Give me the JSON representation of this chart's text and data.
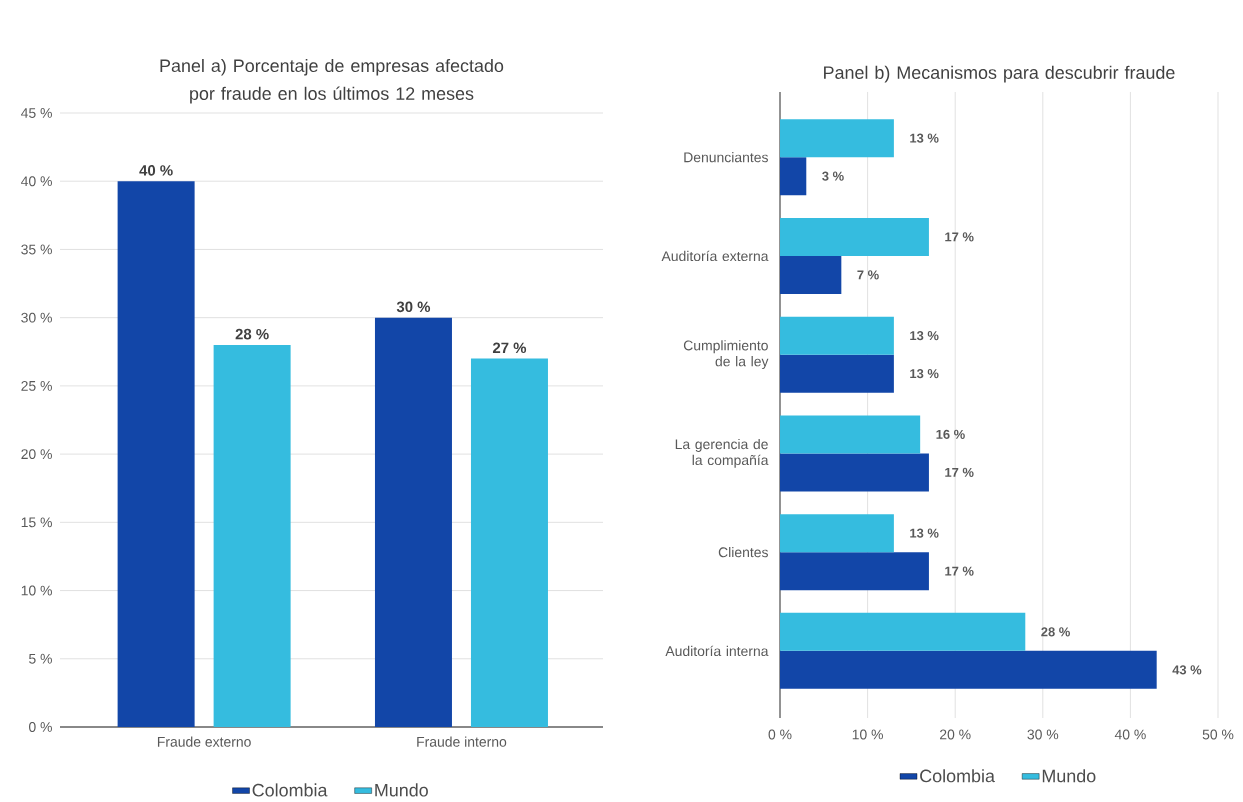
{
  "chart_data": [
    {
      "type": "bar",
      "title": "Panel a) Porcentaje de empresas afectado por fraude en los últimos 12 meses",
      "categories": [
        "Fraude externo",
        "Fraude interno"
      ],
      "series": [
        {
          "name": "Colombia",
          "color": "#1246a8",
          "values": [
            40,
            30
          ],
          "value_labels": [
            "40 %",
            "30 %"
          ]
        },
        {
          "name": "Mundo",
          "color": "#35bcdf",
          "values": [
            28,
            27
          ],
          "value_labels": [
            "28 %",
            "27 %"
          ]
        }
      ],
      "ylim": [
        0,
        45
      ],
      "yticks": [
        {
          "value": 0,
          "label": "0 %"
        },
        {
          "value": 5,
          "label": "5 %"
        },
        {
          "value": 10,
          "label": "10 %"
        },
        {
          "value": 15,
          "label": "15 %"
        },
        {
          "value": 20,
          "label": "20 %"
        },
        {
          "value": 25,
          "label": "25 %"
        },
        {
          "value": 30,
          "label": "30 %"
        },
        {
          "value": 35,
          "label": "35 %"
        },
        {
          "value": 40,
          "label": "40 %"
        },
        {
          "value": 45,
          "label": "45 %"
        }
      ],
      "grid": "y",
      "legend": "bottom"
    },
    {
      "type": "bar",
      "orientation": "horizontal",
      "title": "Panel b) Mecanismos para descubrir fraude",
      "categories": [
        "Denunciantes",
        "Auditoría externa",
        "Cumplimiento de la ley",
        "La gerencia de la compañía",
        "Clientes",
        "Auditoría interna"
      ],
      "series": [
        {
          "name": "Colombia",
          "color": "#1246a8",
          "values": [
            3,
            7,
            13,
            17,
            17,
            43
          ],
          "value_labels": [
            "3 %",
            "7 %",
            "13 %",
            "17 %",
            "17 %",
            "43 %"
          ]
        },
        {
          "name": "Mundo",
          "color": "#35bcdf",
          "values": [
            13,
            17,
            13,
            16,
            13,
            28
          ],
          "value_labels": [
            "13 %",
            "17 %",
            "13 %",
            "16 %",
            "13 %",
            "28 %"
          ]
        }
      ],
      "xlim": [
        0,
        50
      ],
      "xticks": [
        {
          "value": 0,
          "label": "0 %"
        },
        {
          "value": 10,
          "label": "10 %"
        },
        {
          "value": 20,
          "label": "20 %"
        },
        {
          "value": 30,
          "label": "30 %"
        },
        {
          "value": 40,
          "label": "40 %"
        },
        {
          "value": 50,
          "label": "50 %"
        }
      ],
      "grid": "x",
      "legend": "bottom"
    }
  ]
}
